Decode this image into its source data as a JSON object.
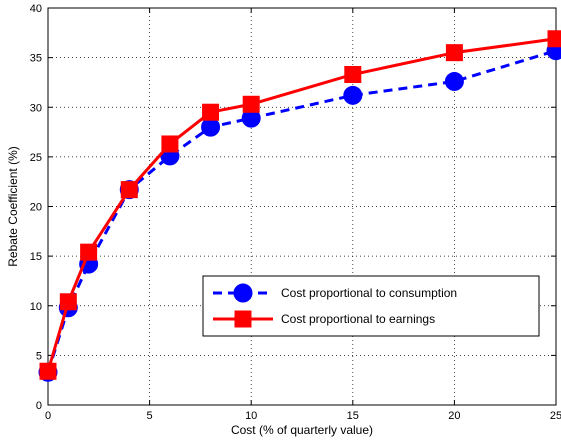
{
  "chart_data": {
    "type": "line",
    "xlabel": "Cost (% of quarterly value)",
    "ylabel": "Rebate Coefficient (%)",
    "xlim": [
      0,
      25
    ],
    "ylim": [
      0,
      40
    ],
    "xticks": [
      0,
      5,
      10,
      15,
      20,
      25
    ],
    "yticks": [
      0,
      5,
      10,
      15,
      20,
      25,
      30,
      35,
      40
    ],
    "grid": true,
    "legend_position": "lower-right",
    "series": [
      {
        "name": "Cost proportional to consumption",
        "color": "#0000ff",
        "line_style": "dashed",
        "marker": "circle",
        "x": [
          0,
          1,
          2,
          4,
          6,
          8,
          10,
          15,
          20,
          25
        ],
        "y": [
          3.3,
          9.8,
          14.2,
          21.7,
          25.1,
          28.0,
          28.9,
          31.2,
          32.6,
          35.7
        ]
      },
      {
        "name": "Cost proportional to earnings",
        "color": "#ff0000",
        "line_style": "solid",
        "marker": "square",
        "x": [
          0,
          1,
          2,
          4,
          6,
          8,
          10,
          15,
          20,
          25
        ],
        "y": [
          3.4,
          10.4,
          15.4,
          21.7,
          26.3,
          29.5,
          30.3,
          33.3,
          35.5,
          36.9
        ]
      }
    ]
  }
}
